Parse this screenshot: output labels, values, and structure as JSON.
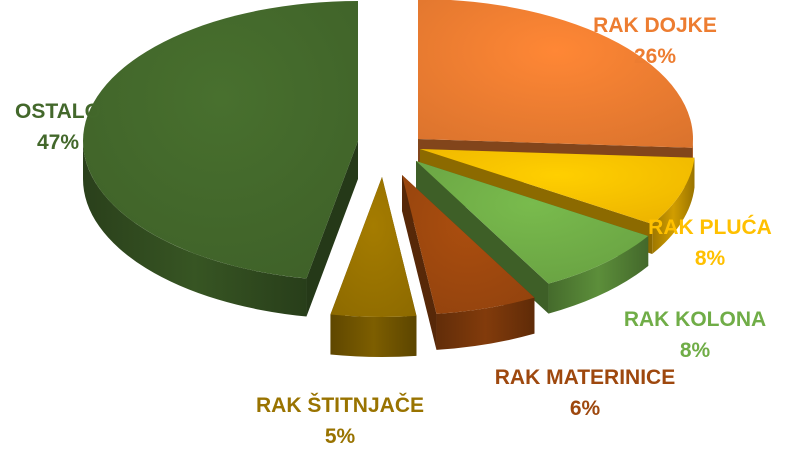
{
  "chart_data": {
    "type": "pie",
    "style": "3d-exploded",
    "categories": [
      "RAK DOJKE",
      "RAK PLUĆA",
      "RAK KOLONA",
      "RAK MATERINICE",
      "RAK ŠTITNJAČE",
      "OSTALO"
    ],
    "values": [
      26,
      8,
      8,
      6,
      5,
      47
    ],
    "value_labels": [
      "26%",
      "8%",
      "8%",
      "6%",
      "5%",
      "47%"
    ],
    "colors": [
      "#ED7D31",
      "#FFC000",
      "#70AD47",
      "#9E480E",
      "#997300",
      "#43682B"
    ],
    "legend": "none",
    "data_labels": "outside"
  }
}
